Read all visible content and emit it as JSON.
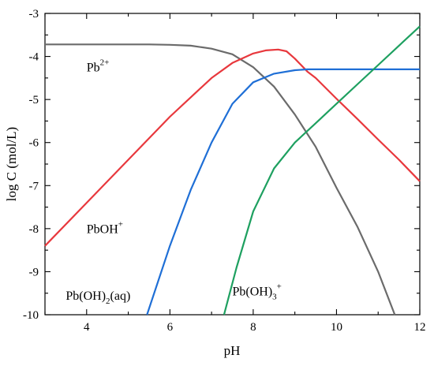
{
  "chart_data": {
    "type": "line",
    "title": "",
    "xlabel": "pH",
    "ylabel": "log C (mol/L)",
    "xlim": [
      3,
      12
    ],
    "ylim": [
      -10,
      -3
    ],
    "xticks": [
      4,
      6,
      8,
      10,
      12
    ],
    "yticks": [
      -3,
      -4,
      -5,
      -6,
      -7,
      -8,
      -9,
      -10
    ],
    "legend": "none",
    "grid": false,
    "series": [
      {
        "name": "Pb2+",
        "label_base": "Pb",
        "label_sup": "2+",
        "label_sub": "",
        "label_tail": "",
        "color": "#6b6b6b",
        "label_at": [
          4.0,
          -4.35
        ],
        "x": [
          3,
          4,
          5,
          5.5,
          6,
          6.5,
          7,
          7.5,
          8,
          8.5,
          9,
          9.5,
          10,
          10.5,
          11,
          11.4
        ],
        "y": [
          -3.72,
          -3.72,
          -3.72,
          -3.72,
          -3.73,
          -3.75,
          -3.82,
          -3.95,
          -4.25,
          -4.7,
          -5.35,
          -6.1,
          -7.05,
          -7.95,
          -9.0,
          -10.0
        ]
      },
      {
        "name": "PbOH+",
        "label_base": "PbOH",
        "label_sup": "+",
        "label_sub": "",
        "label_tail": "",
        "color": "#e8383d",
        "label_at": [
          4.0,
          -8.1
        ],
        "x": [
          3,
          4,
          5,
          6,
          6.5,
          7,
          7.5,
          8,
          8.3,
          8.6,
          8.8,
          9,
          9.3,
          9.5,
          10,
          10.5,
          11,
          11.5,
          12
        ],
        "y": [
          -8.4,
          -7.4,
          -6.4,
          -5.4,
          -4.95,
          -4.5,
          -4.15,
          -3.93,
          -3.86,
          -3.84,
          -3.88,
          -4.05,
          -4.35,
          -4.5,
          -4.98,
          -5.45,
          -5.93,
          -6.4,
          -6.9
        ]
      },
      {
        "name": "Pb(OH)2(aq)",
        "label_base": "Pb(OH)",
        "label_sup": "",
        "label_sub": "2",
        "label_tail": "(aq)",
        "color": "#1f6fd6",
        "label_at": [
          3.5,
          -9.65
        ],
        "x": [
          5.45,
          6,
          6.5,
          7,
          7.5,
          8,
          8.5,
          9,
          9.3,
          9.5,
          10,
          11,
          12
        ],
        "y": [
          -10.0,
          -8.4,
          -7.1,
          -6.0,
          -5.1,
          -4.6,
          -4.4,
          -4.32,
          -4.3,
          -4.3,
          -4.3,
          -4.3,
          -4.3
        ]
      },
      {
        "name": "Pb(OH)3+",
        "label_base": "Pb(OH)",
        "label_sup": "+",
        "label_sub": "3",
        "label_tail": "",
        "color": "#1ea060",
        "label_at": [
          7.5,
          -9.55
        ],
        "x": [
          7.3,
          7.6,
          8,
          8.5,
          9,
          9.5,
          10,
          10.5,
          11,
          11.5,
          12
        ],
        "y": [
          -10.0,
          -8.9,
          -7.6,
          -6.6,
          -6.0,
          -5.55,
          -5.1,
          -4.65,
          -4.2,
          -3.75,
          -3.3
        ]
      }
    ]
  }
}
